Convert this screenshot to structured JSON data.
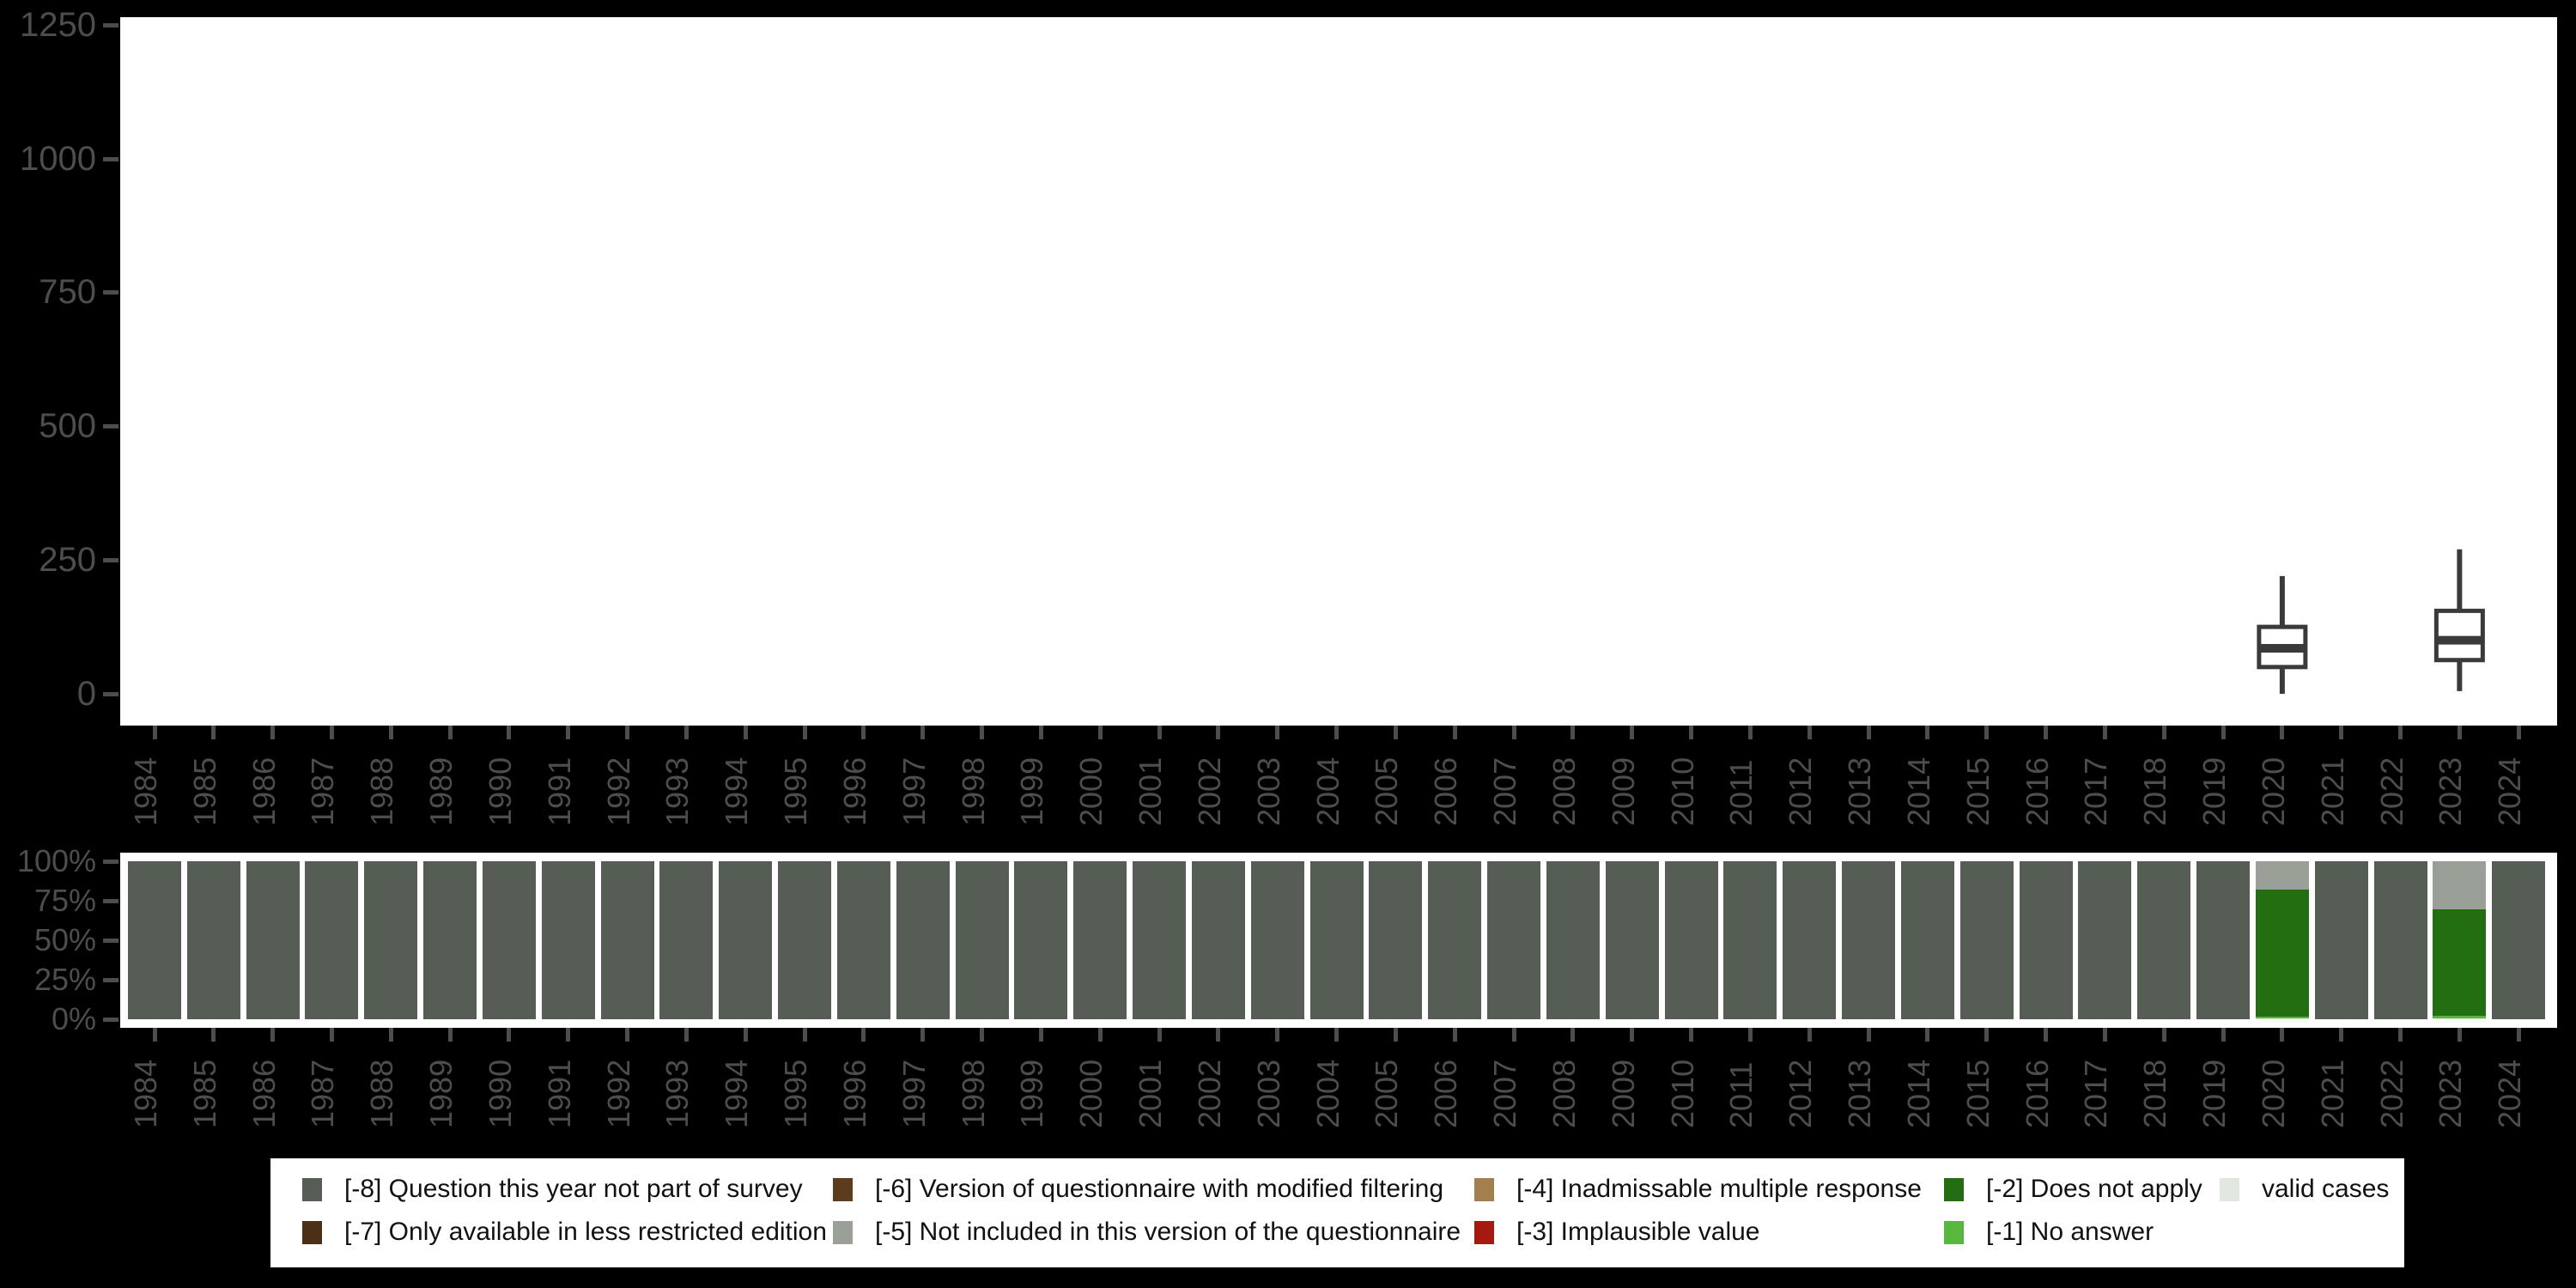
{
  "colors": {
    "background": "#000000",
    "panel": "#ffffff",
    "axis_text": "#4d4d4d",
    "box_stroke": "#3a3a3a",
    "box_fill": "#ffffff"
  },
  "chart_data": [
    {
      "type": "boxplot",
      "title": "",
      "xlabel": "",
      "ylabel": "",
      "ylim": [
        0,
        1250
      ],
      "yticks": [
        0,
        250,
        500,
        750,
        1000,
        1250
      ],
      "grid": false,
      "categories": [
        "1984",
        "1985",
        "1986",
        "1987",
        "1988",
        "1989",
        "1990",
        "1991",
        "1992",
        "1993",
        "1994",
        "1995",
        "1996",
        "1997",
        "1998",
        "1999",
        "2000",
        "2001",
        "2002",
        "2003",
        "2004",
        "2005",
        "2006",
        "2007",
        "2008",
        "2009",
        "2010",
        "2011",
        "2012",
        "2013",
        "2014",
        "2015",
        "2016",
        "2017",
        "2018",
        "2019",
        "2020",
        "2021",
        "2022",
        "2023",
        "2024"
      ],
      "boxes": [
        {
          "year": "2020",
          "min": 0,
          "q1": 50,
          "median": 85,
          "q3": 125,
          "max": 220
        },
        {
          "year": "2023",
          "min": 5,
          "q1": 63,
          "median": 100,
          "q3": 155,
          "max": 270
        }
      ]
    },
    {
      "type": "bar",
      "stacked": true,
      "percent": true,
      "title": "",
      "xlabel": "",
      "ylabel": "",
      "yticks": [
        "0%",
        "25%",
        "50%",
        "75%",
        "100%"
      ],
      "ytick_values": [
        0,
        25,
        50,
        75,
        100
      ],
      "grid": false,
      "categories": [
        "1984",
        "1985",
        "1986",
        "1987",
        "1988",
        "1989",
        "1990",
        "1991",
        "1992",
        "1993",
        "1994",
        "1995",
        "1996",
        "1997",
        "1998",
        "1999",
        "2000",
        "2001",
        "2002",
        "2003",
        "2004",
        "2005",
        "2006",
        "2007",
        "2008",
        "2009",
        "2010",
        "2011",
        "2012",
        "2013",
        "2014",
        "2015",
        "2016",
        "2017",
        "2018",
        "2019",
        "2020",
        "2021",
        "2022",
        "2023",
        "2024"
      ],
      "default_segments": [
        {
          "category": "-8",
          "pct": 100
        }
      ],
      "overrides": {
        "2020": [
          {
            "category": "valid",
            "pct": 0.5
          },
          {
            "category": "-1",
            "pct": 1.2
          },
          {
            "category": "-2",
            "pct": 80.4
          },
          {
            "category": "-5",
            "pct": 17.9
          }
        ],
        "2023": [
          {
            "category": "valid",
            "pct": 0.6
          },
          {
            "category": "-1",
            "pct": 1.6
          },
          {
            "category": "-2",
            "pct": 67.4
          },
          {
            "category": "-5",
            "pct": 30.4
          }
        ]
      }
    }
  ],
  "legend": {
    "items": [
      {
        "id": "-8",
        "label": "[-8] Question this year not part of survey",
        "color": "#565d55",
        "col": 0,
        "row": 0
      },
      {
        "id": "-7",
        "label": "[-7] Only available in less restricted edition",
        "color": "#4b2f17",
        "col": 0,
        "row": 1
      },
      {
        "id": "-6",
        "label": "[-6] Version of questionnaire with modified filtering",
        "color": "#5c3c1c",
        "col": 1,
        "row": 0
      },
      {
        "id": "-5",
        "label": "[-5] Not included in this version of the questionnaire",
        "color": "#9aa098",
        "col": 1,
        "row": 1
      },
      {
        "id": "-4",
        "label": "[-4] Inadmissable multiple response",
        "color": "#a37f50",
        "col": 2,
        "row": 0
      },
      {
        "id": "-3",
        "label": "[-3] Implausible value",
        "color": "#a6190e",
        "col": 2,
        "row": 1
      },
      {
        "id": "-2",
        "label": "[-2] Does not apply",
        "color": "#226e10",
        "col": 3,
        "row": 0
      },
      {
        "id": "-1",
        "label": "[-1] No answer",
        "color": "#56b93e",
        "col": 3,
        "row": 1
      },
      {
        "id": "valid",
        "label": "valid cases",
        "color": "#e2e7e0",
        "col": 4,
        "row": 0
      }
    ]
  }
}
